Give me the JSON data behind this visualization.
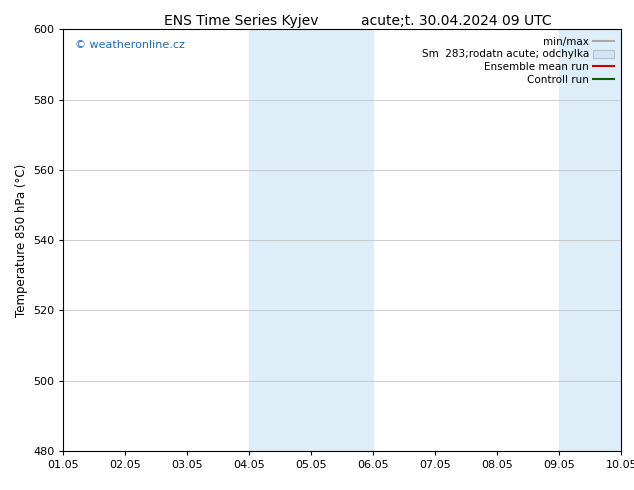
{
  "title_left": "ENS Time Series Kyjev",
  "title_right": "acute;t. 30.04.2024 09 UTC",
  "ylabel": "Temperature 850 hPa (°C)",
  "ylim": [
    480,
    600
  ],
  "yticks": [
    480,
    500,
    520,
    540,
    560,
    580,
    600
  ],
  "xtick_labels": [
    "01.05",
    "02.05",
    "03.05",
    "04.05",
    "05.05",
    "06.05",
    "07.05",
    "08.05",
    "09.05",
    "10.05"
  ],
  "watermark": "© weatheronline.cz",
  "watermark_color": "#1a6bb5",
  "shaded_regions": [
    {
      "xmin": 3,
      "xmax": 4,
      "color": "#ddeef8"
    },
    {
      "xmin": 4,
      "xmax": 5,
      "color": "#ddeef8"
    },
    {
      "xmin": 8,
      "xmax": 9,
      "color": "#ddeef8"
    }
  ],
  "legend_items": [
    {
      "label": "min/max",
      "type": "hline",
      "color": "#aaaaaa"
    },
    {
      "label": "Sm  283;rodatn acute; odchylka",
      "type": "fill",
      "color": "#d0e5f5"
    },
    {
      "label": "Ensemble mean run",
      "type": "line",
      "color": "#cc0000"
    },
    {
      "label": "Controll run",
      "type": "line",
      "color": "#006600"
    }
  ],
  "background_color": "#ffffff",
  "grid_color": "#bbbbbb",
  "title_fontsize": 10,
  "tick_fontsize": 8,
  "ylabel_fontsize": 8.5,
  "watermark_fontsize": 8,
  "legend_fontsize": 7.5
}
